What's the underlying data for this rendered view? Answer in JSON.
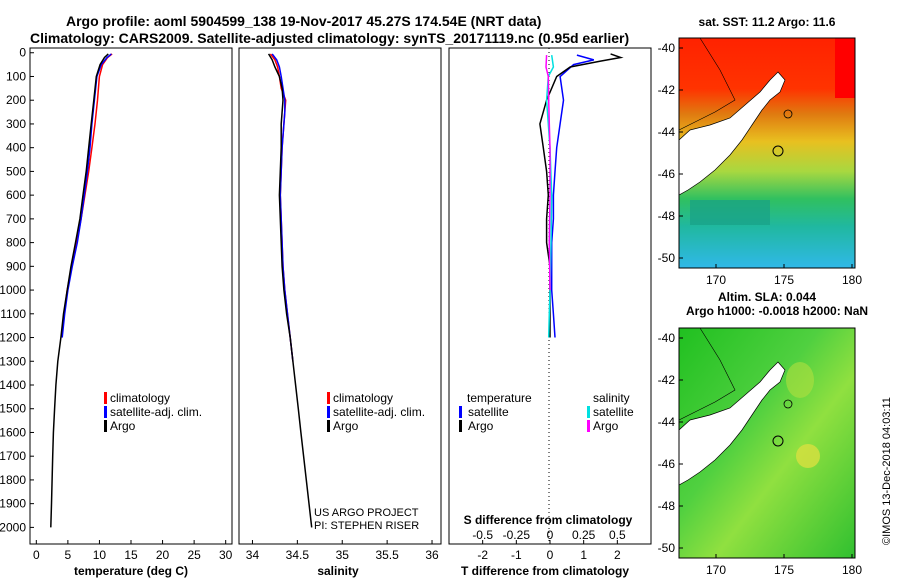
{
  "title": {
    "line1": "Argo profile: aoml 5904599_138 19-Nov-2017 45.27S 174.54E (NRT data)",
    "line2": "Climatology: CARS2009. Satellite-adjusted climatology: synTS_20171119.nc (0.95d earlier)"
  },
  "depth_ticks": [
    "0",
    "100",
    "200",
    "300",
    "400",
    "500",
    "600",
    "700",
    "800",
    "900",
    "1000",
    "1100",
    "1200",
    "1300",
    "1400",
    "1500",
    "1600",
    "1700",
    "1800",
    "1900",
    "2000"
  ],
  "chart_data": [
    {
      "type": "line",
      "name": "temperature",
      "xlabel": "temperature (deg C)",
      "ylabel": "",
      "xlim": [
        -1,
        31
      ],
      "ylim": [
        2070,
        -20
      ],
      "xticks": [
        "0",
        "5",
        "10",
        "15",
        "20",
        "25",
        "30"
      ],
      "legend": [
        "climatology",
        "satellite-adj. clim.",
        "Argo"
      ],
      "series": [
        {
          "name": "climatology",
          "color": "#ff0000",
          "points": [
            [
              12,
              5
            ],
            [
              11.3,
              20
            ],
            [
              10.5,
              50
            ],
            [
              10,
              100
            ],
            [
              9.7,
              200
            ],
            [
              9.3,
              300
            ],
            [
              8.8,
              400
            ],
            [
              8.3,
              500
            ],
            [
              7.7,
              600
            ],
            [
              7.1,
              700
            ],
            [
              6.4,
              800
            ],
            [
              5.6,
              900
            ],
            [
              4.9,
              1000
            ],
            [
              4.4,
              1100
            ],
            [
              4,
              1200
            ]
          ]
        },
        {
          "name": "satellite-adj. clim.",
          "color": "#0000ff",
          "points": [
            [
              11.9,
              5
            ],
            [
              11.2,
              20
            ],
            [
              10.3,
              50
            ],
            [
              9.6,
              100
            ],
            [
              9.2,
              200
            ],
            [
              8.8,
              300
            ],
            [
              8.5,
              400
            ],
            [
              8.1,
              500
            ],
            [
              7.6,
              600
            ],
            [
              7.1,
              700
            ],
            [
              6.5,
              800
            ],
            [
              5.7,
              900
            ],
            [
              5,
              1000
            ],
            [
              4.5,
              1100
            ],
            [
              4.1,
              1200
            ]
          ]
        },
        {
          "name": "Argo",
          "color": "#000000",
          "points": [
            [
              11.4,
              5
            ],
            [
              10.8,
              20
            ],
            [
              10.1,
              50
            ],
            [
              9.5,
              100
            ],
            [
              9.1,
              200
            ],
            [
              8.7,
              300
            ],
            [
              8.3,
              400
            ],
            [
              7.9,
              500
            ],
            [
              7.4,
              600
            ],
            [
              6.9,
              700
            ],
            [
              6.2,
              800
            ],
            [
              5.5,
              900
            ],
            [
              4.9,
              1000
            ],
            [
              4.3,
              1100
            ],
            [
              3.9,
              1200
            ],
            [
              3.4,
              1300
            ],
            [
              3.1,
              1400
            ],
            [
              2.9,
              1500
            ],
            [
              2.7,
              1600
            ],
            [
              2.6,
              1700
            ],
            [
              2.5,
              1800
            ],
            [
              2.4,
              1900
            ],
            [
              2.3,
              2000
            ]
          ]
        }
      ]
    },
    {
      "type": "line",
      "name": "salinity",
      "xlabel": "salinity",
      "ylabel": "",
      "xlim": [
        33.85,
        36.1
      ],
      "ylim": [
        2070,
        -20
      ],
      "xticks": [
        "34",
        "34.5",
        "35",
        "35.5",
        "36"
      ],
      "legend": [
        "climatology",
        "satellite-adj. clim.",
        "Argo"
      ],
      "series": [
        {
          "name": "climatology",
          "color": "#ff0000",
          "points": [
            [
              34.2,
              5
            ],
            [
              34.25,
              30
            ],
            [
              34.28,
              60
            ],
            [
              34.3,
              100
            ],
            [
              34.32,
              150
            ],
            [
              34.37,
              200
            ],
            [
              34.36,
              250
            ],
            [
              34.35,
              300
            ],
            [
              34.33,
              400
            ],
            [
              34.32,
              500
            ],
            [
              34.31,
              600
            ],
            [
              34.32,
              700
            ],
            [
              34.33,
              800
            ],
            [
              34.34,
              900
            ],
            [
              34.36,
              1000
            ],
            [
              34.39,
              1100
            ],
            [
              34.42,
              1200
            ],
            [
              34.45,
              1300
            ]
          ]
        },
        {
          "name": "satellite-adj. clim.",
          "color": "#0000ff",
          "points": [
            [
              34.22,
              5
            ],
            [
              34.27,
              30
            ],
            [
              34.3,
              60
            ],
            [
              34.32,
              100
            ],
            [
              34.34,
              150
            ],
            [
              34.36,
              200
            ],
            [
              34.36,
              250
            ],
            [
              34.35,
              300
            ],
            [
              34.33,
              400
            ],
            [
              34.32,
              500
            ],
            [
              34.31,
              600
            ],
            [
              34.32,
              700
            ],
            [
              34.33,
              800
            ],
            [
              34.34,
              900
            ],
            [
              34.36,
              1000
            ],
            [
              34.39,
              1100
            ],
            [
              34.42,
              1200
            ],
            [
              34.45,
              1300
            ]
          ]
        },
        {
          "name": "Argo",
          "color": "#000000",
          "points": [
            [
              34.18,
              5
            ],
            [
              34.22,
              30
            ],
            [
              34.25,
              60
            ],
            [
              34.3,
              100
            ],
            [
              34.33,
              150
            ],
            [
              34.34,
              200
            ],
            [
              34.33,
              250
            ],
            [
              34.32,
              300
            ],
            [
              34.32,
              400
            ],
            [
              34.31,
              500
            ],
            [
              34.3,
              600
            ],
            [
              34.31,
              700
            ],
            [
              34.32,
              800
            ],
            [
              34.33,
              900
            ],
            [
              34.35,
              1000
            ],
            [
              34.38,
              1100
            ],
            [
              34.42,
              1200
            ],
            [
              34.45,
              1300
            ],
            [
              34.48,
              1400
            ],
            [
              34.51,
              1500
            ],
            [
              34.54,
              1600
            ],
            [
              34.57,
              1700
            ],
            [
              34.6,
              1800
            ],
            [
              34.63,
              1900
            ],
            [
              34.66,
              2000
            ]
          ]
        }
      ]
    },
    {
      "type": "line",
      "name": "difference",
      "xlabel": "T difference from climatology",
      "x2label": "S difference from climatology",
      "ylabel": "",
      "xlim": [
        -3,
        3
      ],
      "ylim": [
        2070,
        -20
      ],
      "xticks": [
        "-2",
        "-1",
        "0",
        "1",
        "2"
      ],
      "x2ticks": [
        "-0.5",
        "-0.25",
        "0",
        "0.25",
        "0.5"
      ],
      "legend_left_title": "temperature",
      "legend_right_title": "salinity",
      "legend_left": [
        "satellite",
        "Argo"
      ],
      "legend_right": [
        "satellite",
        "Argo"
      ],
      "series": [
        {
          "name": "temperature satellite",
          "color": "#0000ff",
          "points": [
            [
              0.8,
              10
            ],
            [
              1.3,
              30
            ],
            [
              0.7,
              50
            ],
            [
              0.3,
              100
            ],
            [
              0.4,
              200
            ],
            [
              0.3,
              300
            ],
            [
              0.2,
              400
            ],
            [
              0.15,
              500
            ],
            [
              0.1,
              600
            ],
            [
              0.1,
              700
            ],
            [
              0.05,
              800
            ],
            [
              0.05,
              1000
            ],
            [
              0.1,
              1100
            ],
            [
              0.15,
              1200
            ]
          ]
        },
        {
          "name": "temperature Argo",
          "color": "#000000",
          "points": [
            [
              1.8,
              5
            ],
            [
              2.1,
              20
            ],
            [
              1.5,
              35
            ],
            [
              0.6,
              60
            ],
            [
              0.2,
              100
            ],
            [
              -0.1,
              200
            ],
            [
              -0.3,
              300
            ],
            [
              -0.2,
              400
            ],
            [
              -0.1,
              500
            ],
            [
              -0.05,
              600
            ],
            [
              -0.1,
              700
            ],
            [
              -0.1,
              800
            ],
            [
              0,
              900
            ],
            [
              0,
              1000
            ],
            [
              0,
              1100
            ],
            [
              0,
              1200
            ]
          ]
        },
        {
          "name": "salinity satellite",
          "color": "#00e0e0",
          "points": [
            [
              0.05,
              10
            ],
            [
              0.1,
              60
            ],
            [
              -0.05,
              100
            ],
            [
              -0.1,
              200
            ],
            [
              0,
              400
            ],
            [
              0.05,
              600
            ],
            [
              0.03,
              800
            ],
            [
              0,
              1000
            ],
            [
              -0.02,
              1100
            ],
            [
              -0.04,
              1200
            ]
          ]
        },
        {
          "name": "salinity Argo",
          "color": "#ff00ff",
          "points": [
            [
              -0.1,
              10
            ],
            [
              -0.12,
              60
            ],
            [
              -0.05,
              100
            ],
            [
              -0.04,
              200
            ],
            [
              -0.02,
              300
            ],
            [
              0,
              400
            ],
            [
              0,
              600
            ],
            [
              -0.02,
              800
            ],
            [
              0,
              1000
            ]
          ]
        }
      ]
    }
  ],
  "maps": {
    "top_title": "sat. SST: 11.2 Argo: 11.6",
    "bottom_title1": "Altim. SLA: 0.044",
    "bottom_title2": "Argo h1000: -0.0018 h2000: NaN",
    "lat_ticks": [
      "-40",
      "-42",
      "-44",
      "-46",
      "-48",
      "-50"
    ],
    "lon_ticks": [
      "170",
      "175",
      "180"
    ]
  },
  "credits": {
    "project": "US ARGO PROJECT",
    "pi": "PI: STEPHEN RISER",
    "imos": "©IMOS 13-Dec-2018 04:03:11"
  },
  "colors": {
    "climatology": "#ff0000",
    "satellite": "#0000ff",
    "argo": "#000000",
    "sal_satellite": "#00e0e0",
    "sal_argo": "#ff00ff"
  }
}
